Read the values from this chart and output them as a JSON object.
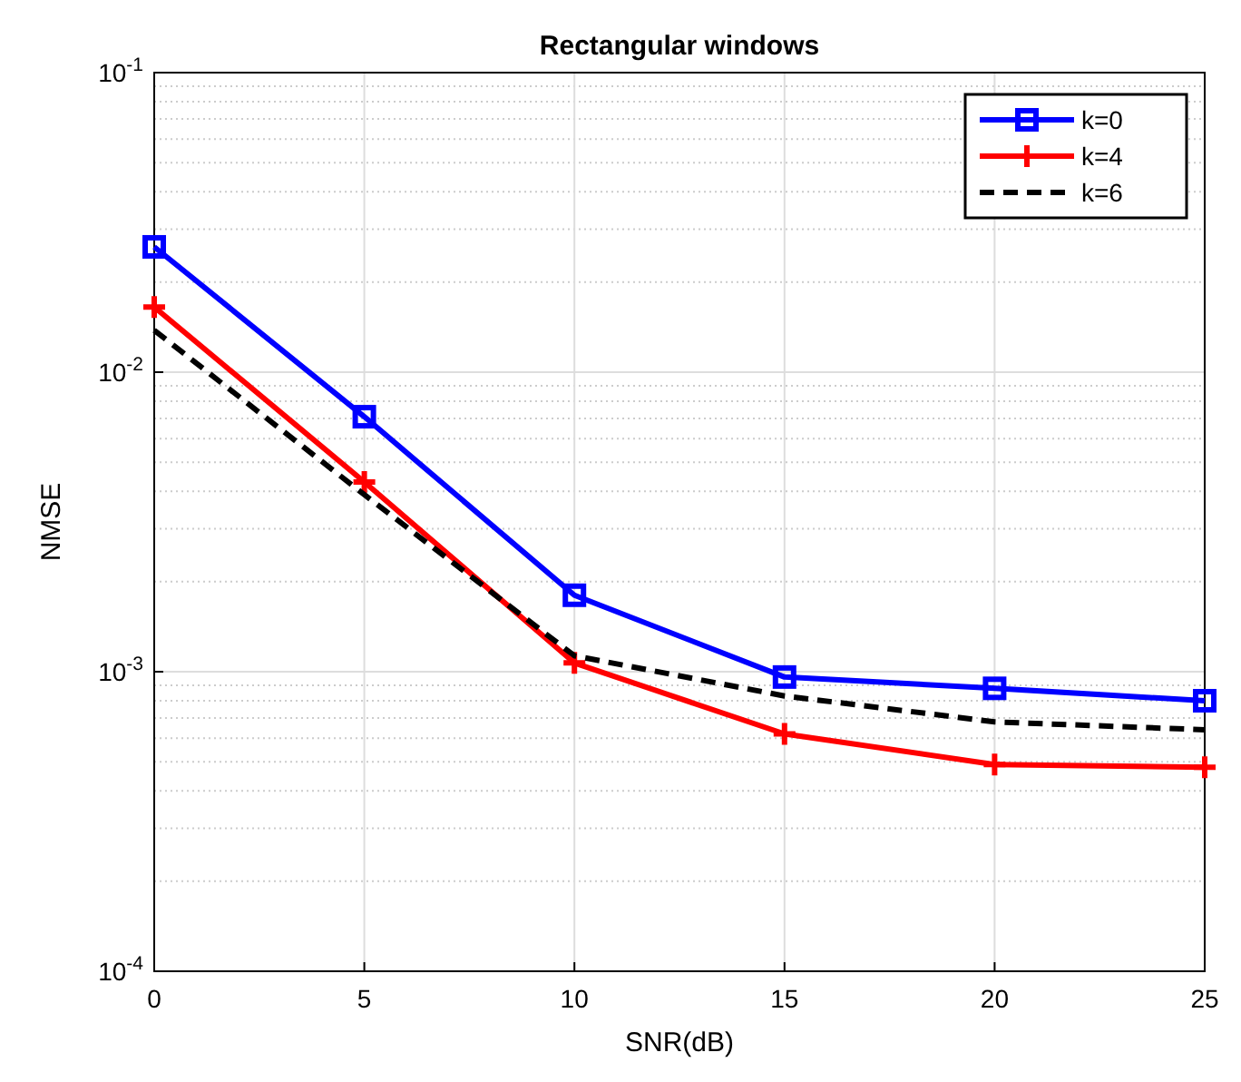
{
  "chart_data": {
    "type": "line",
    "title": "Rectangular windows",
    "xlabel": "SNR(dB)",
    "ylabel": "NMSE",
    "x": [
      0,
      5,
      10,
      15,
      20,
      25
    ],
    "xlim": [
      0,
      25
    ],
    "xticks": [
      0,
      5,
      10,
      15,
      20,
      25
    ],
    "ylim": [
      0.0001,
      0.1
    ],
    "yticks": [
      {
        "value": 0.0001,
        "label": "10$^{-4}$"
      },
      {
        "value": 0.001,
        "label": "10$^{-3}$"
      },
      {
        "value": 0.01,
        "label": "10$^{-2}$"
      },
      {
        "value": 0.1,
        "label": "10$^{-1}$"
      }
    ],
    "log": "y",
    "grid": true,
    "legend": "top right",
    "series": [
      {
        "name": "k=0",
        "color": "#0000ff",
        "marker": "square",
        "line_style": "solid",
        "values": [
          0.0262,
          0.0071,
          0.0018,
          0.00096,
          0.00088,
          0.0008
        ]
      },
      {
        "name": "k=4",
        "color": "#ff0000",
        "marker": "cross",
        "line_style": "solid",
        "values": [
          0.0165,
          0.0043,
          0.00107,
          0.00062,
          0.00049,
          0.00048
        ]
      },
      {
        "name": "k=6",
        "color": "#000000",
        "marker": "none",
        "line_style": "dashed",
        "values": [
          0.0138,
          0.0039,
          0.00113,
          0.00083,
          0.00068,
          0.00064
        ]
      }
    ]
  }
}
